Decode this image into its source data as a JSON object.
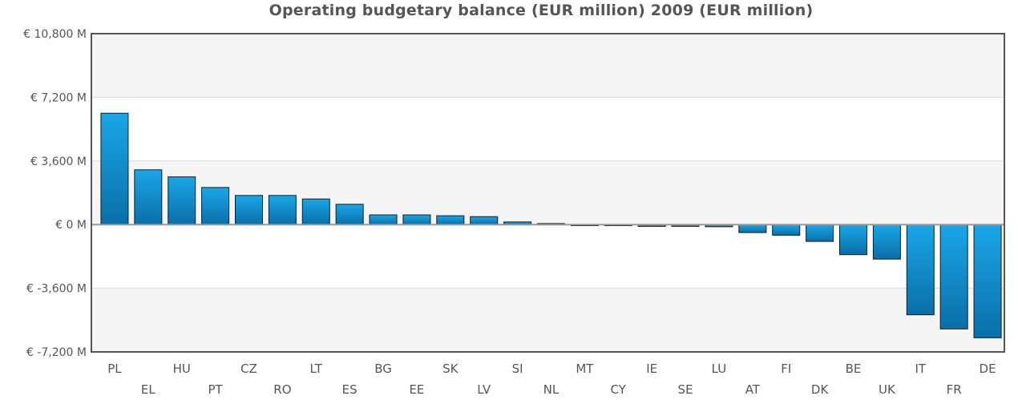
{
  "chart_data": {
    "type": "bar",
    "title": "Operating budgetary balance (EUR million) 2009 (EUR million)",
    "xlabel": "",
    "ylabel": "",
    "currency_prefix": "€",
    "unit_suffix": "M",
    "ylim": [
      -7200,
      10800
    ],
    "yticks": [
      -7200,
      -3600,
      0,
      3600,
      7200,
      10800
    ],
    "ytick_labels": [
      "€ -7,200 M",
      "€ -3,600 M",
      "€ 0 M",
      "€ 3,600 M",
      "€ 7,200 M",
      "€ 10,800 M"
    ],
    "grid": true,
    "legend": "none",
    "colors": {
      "bar_top": "#1aa6e8",
      "bar_bottom": "#0a6fa8",
      "bar_stroke": "#1a1a1a",
      "band": "#f5f5f5",
      "frame": "#555555"
    },
    "categories": [
      "PL",
      "EL",
      "HU",
      "PT",
      "CZ",
      "RO",
      "LT",
      "ES",
      "BG",
      "EE",
      "SK",
      "LV",
      "SI",
      "NL",
      "MT",
      "CY",
      "IE",
      "SE",
      "LU",
      "AT",
      "FI",
      "DK",
      "BE",
      "UK",
      "IT",
      "FR",
      "DE"
    ],
    "values": [
      6300,
      3100,
      2700,
      2100,
      1650,
      1650,
      1450,
      1150,
      550,
      550,
      500,
      450,
      150,
      60,
      -60,
      -60,
      -100,
      -100,
      -120,
      -450,
      -600,
      -950,
      -1700,
      -1950,
      -5100,
      -5900,
      -6400
    ]
  }
}
